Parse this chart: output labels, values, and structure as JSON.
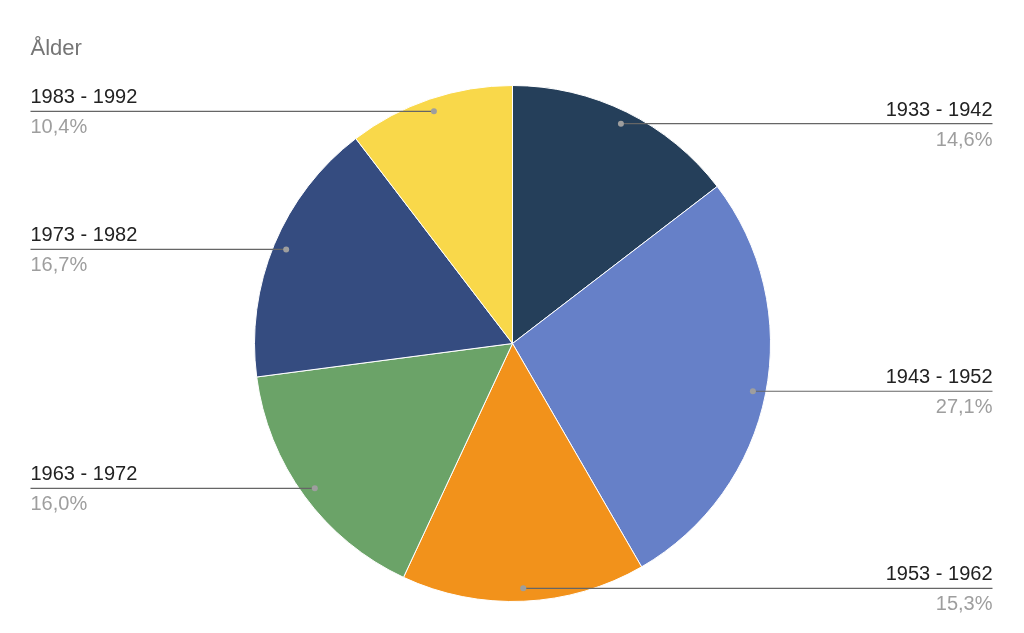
{
  "chart_data": {
    "type": "pie",
    "title": "Ålder",
    "categories": [
      "1933 - 1942",
      "1943 - 1952",
      "1953 - 1962",
      "1963 - 1972",
      "1973 - 1982",
      "1983 - 1992"
    ],
    "values": [
      14.6,
      27.1,
      15.3,
      16.0,
      16.7,
      10.4
    ],
    "value_labels": [
      "14,6%",
      "27,1%",
      "15,3%",
      "16,0%",
      "16,7%",
      "10,4%"
    ],
    "colors": [
      "#253f5a",
      "#6680c8",
      "#f2921b",
      "#6ba368",
      "#354c80",
      "#f9d84a"
    ]
  }
}
